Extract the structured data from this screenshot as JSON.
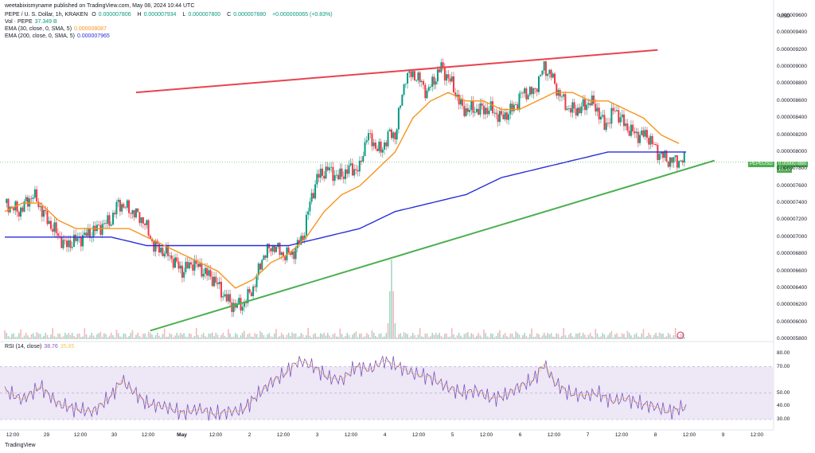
{
  "publisher": "weetabixismyname published on TradingView.com, May 08, 2024 10:44 UTC",
  "header": {
    "symbol": "PEPE / U. S. Dollar, 1h, KRAKEN",
    "o_label": "O",
    "o_value": "0.000007806",
    "h_label": "H",
    "h_value": "0.000007934",
    "l_label": "L",
    "l_value": "0.000007800",
    "c_label": "C",
    "c_value": "0.000007880",
    "change": "+0.000000065 (+0.83%)",
    "vol_label": "Vol · PEPE",
    "vol_value": "37.349 B",
    "ema30_label": "EMA (30, close, 0, SMA, 5)",
    "ema30_value": "0.000008087",
    "ema200_label": "EMA (200, close, 0, SMA, 5)",
    "ema200_value": "0.000007965"
  },
  "rsi_header": {
    "label": "RSI (14, close)",
    "value1": "38.76",
    "value2": "35.85"
  },
  "currency": "USD",
  "price_tag": {
    "symbol": "PEPEUSD",
    "price": "0.000007880",
    "countdown": "15:14"
  },
  "footer": "TradingView",
  "colors": {
    "up": "#089981",
    "down": "#f23645",
    "ema30": "#f7931a",
    "ema200": "#2a2ed8",
    "trend_up": "#4caf50",
    "trend_red": "#e8434f",
    "rsi_fill": "#ede7f6",
    "rsi_line": "#7e57c2"
  },
  "chart_data": {
    "type": "candlestick",
    "y_ticks": [
      "0.000009600",
      "0.000009400",
      "0.000009200",
      "0.000009000",
      "0.000008800",
      "0.000008600",
      "0.000008400",
      "0.000008200",
      "0.000008000",
      "0.000007800",
      "0.000007600",
      "0.000007400",
      "0.000007200",
      "0.000007000",
      "0.000006800",
      "0.000006600",
      "0.000006400",
      "0.000006200",
      "0.000006000",
      "0.000005800"
    ],
    "y_range": [
      5.8e-06,
      9.6e-06
    ],
    "x_ticks": [
      "12:00",
      "29",
      "12:00",
      "30",
      "12:00",
      "May",
      "12:00",
      "2",
      "12:00",
      "3",
      "12:00",
      "4",
      "12:00",
      "5",
      "12:00",
      "6",
      "12:00",
      "7",
      "12:00",
      "8",
      "12:00",
      "9",
      "12:00"
    ],
    "rsi_ticks": [
      "80.00",
      "70.00",
      "50.00",
      "40.00",
      "30.00"
    ],
    "rsi_range": [
      30,
      80
    ],
    "close_anchors": [
      [
        0,
        7.4e-06
      ],
      [
        8,
        7.3e-06
      ],
      [
        16,
        7.5e-06
      ],
      [
        24,
        7.2e-06
      ],
      [
        34,
        6.9e-06
      ],
      [
        44,
        7e-06
      ],
      [
        52,
        7.1e-06
      ],
      [
        60,
        7.2e-06
      ],
      [
        64,
        7.4e-06
      ],
      [
        72,
        7.3e-06
      ],
      [
        78,
        7.2e-06
      ],
      [
        84,
        6.9e-06
      ],
      [
        92,
        6.8e-06
      ],
      [
        100,
        6.6e-06
      ],
      [
        106,
        6.7e-06
      ],
      [
        112,
        6.6e-06
      ],
      [
        118,
        6.5e-06
      ],
      [
        124,
        6.3e-06
      ],
      [
        128,
        6.2e-06
      ],
      [
        134,
        6.2e-06
      ],
      [
        140,
        6.4e-06
      ],
      [
        146,
        6.8e-06
      ],
      [
        152,
        6.9e-06
      ],
      [
        156,
        6.8e-06
      ],
      [
        162,
        6.8e-06
      ],
      [
        168,
        7e-06
      ],
      [
        172,
        7.4e-06
      ],
      [
        176,
        7.7e-06
      ],
      [
        182,
        7.8e-06
      ],
      [
        188,
        7.7e-06
      ],
      [
        194,
        7.8e-06
      ],
      [
        200,
        7.8e-06
      ],
      [
        204,
        8.2e-06
      ],
      [
        208,
        8.1e-06
      ],
      [
        212,
        8e-06
      ],
      [
        216,
        8.2e-06
      ],
      [
        220,
        8.2e-06
      ],
      [
        226,
        8.9e-06
      ],
      [
        232,
        8.9e-06
      ],
      [
        238,
        8.7e-06
      ],
      [
        246,
        9e-06
      ],
      [
        252,
        8.8e-06
      ],
      [
        258,
        8.5e-06
      ],
      [
        266,
        8.5e-06
      ],
      [
        274,
        8.5e-06
      ],
      [
        280,
        8.4e-06
      ],
      [
        286,
        8.5e-06
      ],
      [
        292,
        8.7e-06
      ],
      [
        298,
        8.7e-06
      ],
      [
        304,
        9e-06
      ],
      [
        308,
        8.9e-06
      ],
      [
        312,
        8.7e-06
      ],
      [
        318,
        8.5e-06
      ],
      [
        324,
        8.5e-06
      ],
      [
        330,
        8.6e-06
      ],
      [
        334,
        8.5e-06
      ],
      [
        338,
        8.3e-06
      ],
      [
        344,
        8.5e-06
      ],
      [
        350,
        8.3e-06
      ],
      [
        356,
        8.2e-06
      ],
      [
        362,
        8.2e-06
      ],
      [
        368,
        8e-06
      ],
      [
        374,
        7.9e-06
      ],
      [
        380,
        7.9e-06
      ],
      [
        384,
        7.9e-06
      ]
    ],
    "ema30_anchors": [
      [
        0,
        7.3e-06
      ],
      [
        10,
        7.4e-06
      ],
      [
        20,
        7.4e-06
      ],
      [
        30,
        7.2e-06
      ],
      [
        40,
        7.1e-06
      ],
      [
        50,
        7.1e-06
      ],
      [
        60,
        7.1e-06
      ],
      [
        70,
        7.1e-06
      ],
      [
        80,
        7e-06
      ],
      [
        90,
        6.9e-06
      ],
      [
        100,
        6.8e-06
      ],
      [
        110,
        6.7e-06
      ],
      [
        120,
        6.6e-06
      ],
      [
        130,
        6.4e-06
      ],
      [
        140,
        6.5e-06
      ],
      [
        150,
        6.7e-06
      ],
      [
        160,
        6.8e-06
      ],
      [
        170,
        7e-06
      ],
      [
        180,
        7.3e-06
      ],
      [
        190,
        7.5e-06
      ],
      [
        200,
        7.6e-06
      ],
      [
        210,
        7.8e-06
      ],
      [
        220,
        8e-06
      ],
      [
        230,
        8.4e-06
      ],
      [
        240,
        8.6e-06
      ],
      [
        250,
        8.7e-06
      ],
      [
        260,
        8.6e-06
      ],
      [
        270,
        8.6e-06
      ],
      [
        280,
        8.5e-06
      ],
      [
        290,
        8.5e-06
      ],
      [
        300,
        8.6e-06
      ],
      [
        310,
        8.7e-06
      ],
      [
        320,
        8.7e-06
      ],
      [
        330,
        8.6e-06
      ],
      [
        340,
        8.6e-06
      ],
      [
        350,
        8.5e-06
      ],
      [
        360,
        8.4e-06
      ],
      [
        370,
        8.2e-06
      ],
      [
        380,
        8.1e-06
      ]
    ],
    "ema200_anchors": [
      [
        0,
        7e-06
      ],
      [
        20,
        7e-06
      ],
      [
        40,
        7e-06
      ],
      [
        60,
        7e-06
      ],
      [
        80,
        6.9e-06
      ],
      [
        100,
        6.9e-06
      ],
      [
        120,
        6.9e-06
      ],
      [
        140,
        6.9e-06
      ],
      [
        160,
        6.9e-06
      ],
      [
        180,
        7e-06
      ],
      [
        200,
        7.1e-06
      ],
      [
        220,
        7.3e-06
      ],
      [
        240,
        7.4e-06
      ],
      [
        260,
        7.5e-06
      ],
      [
        280,
        7.7e-06
      ],
      [
        300,
        7.8e-06
      ],
      [
        320,
        7.9e-06
      ],
      [
        340,
        8e-06
      ],
      [
        360,
        8e-06
      ],
      [
        384,
        8e-06
      ]
    ],
    "trend_up": [
      [
        82,
        5.9e-06
      ],
      [
        400,
        7.9e-06
      ]
    ],
    "trend_red": [
      [
        74,
        8.7e-06
      ],
      [
        368,
        9.2e-06
      ]
    ],
    "volume_spike_index": 218,
    "rsi_anchors": [
      [
        0,
        52
      ],
      [
        10,
        45
      ],
      [
        20,
        55
      ],
      [
        30,
        42
      ],
      [
        40,
        38
      ],
      [
        50,
        36
      ],
      [
        60,
        48
      ],
      [
        66,
        60
      ],
      [
        72,
        52
      ],
      [
        80,
        42
      ],
      [
        90,
        40
      ],
      [
        100,
        35
      ],
      [
        110,
        38
      ],
      [
        118,
        34
      ],
      [
        126,
        36
      ],
      [
        134,
        37
      ],
      [
        142,
        48
      ],
      [
        150,
        58
      ],
      [
        158,
        65
      ],
      [
        166,
        75
      ],
      [
        174,
        70
      ],
      [
        182,
        62
      ],
      [
        190,
        60
      ],
      [
        198,
        70
      ],
      [
        206,
        68
      ],
      [
        214,
        75
      ],
      [
        222,
        70
      ],
      [
        230,
        65
      ],
      [
        240,
        62
      ],
      [
        250,
        54
      ],
      [
        258,
        50
      ],
      [
        266,
        52
      ],
      [
        274,
        46
      ],
      [
        282,
        48
      ],
      [
        290,
        55
      ],
      [
        298,
        60
      ],
      [
        304,
        72
      ],
      [
        310,
        58
      ],
      [
        318,
        50
      ],
      [
        326,
        48
      ],
      [
        334,
        50
      ],
      [
        342,
        44
      ],
      [
        350,
        46
      ],
      [
        358,
        42
      ],
      [
        366,
        40
      ],
      [
        374,
        36
      ],
      [
        380,
        38
      ],
      [
        384,
        40
      ]
    ]
  }
}
